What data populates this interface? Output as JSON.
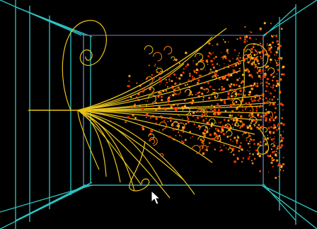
{
  "scene": {
    "background": "#000000",
    "detector_color": "#2ec4c4",
    "inner_frame_color": "#6a6aa8",
    "track_color": "#e8c21a",
    "hit_colors": [
      "#ff6a00",
      "#ff3a00",
      "#ff8c1a",
      "#ffb020",
      "#e83000"
    ]
  },
  "cursor": {
    "icon": "mouse-pointer-icon"
  }
}
